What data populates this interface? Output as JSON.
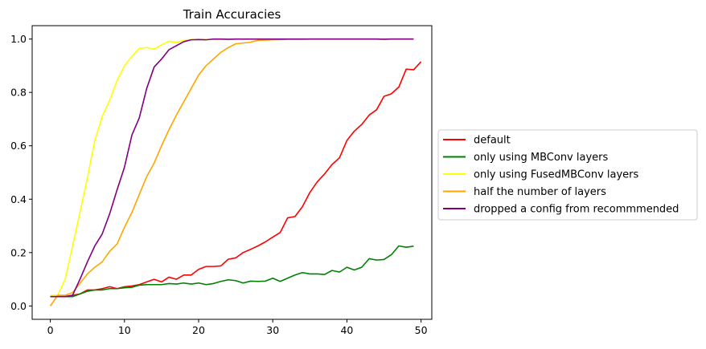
{
  "chart_data": {
    "type": "line",
    "title": "Train Accuracies",
    "xlabel": "",
    "ylabel": "",
    "xlim": [
      -2.45,
      51.45
    ],
    "ylim": [
      -0.05,
      1.05
    ],
    "xticks": [
      0,
      10,
      20,
      30,
      40,
      50
    ],
    "yticks": [
      0.0,
      0.2,
      0.4,
      0.6,
      0.8,
      1.0
    ],
    "xtick_labels": [
      "0",
      "10",
      "20",
      "30",
      "40",
      "50"
    ],
    "ytick_labels": [
      "0.0",
      "0.2",
      "0.4",
      "0.6",
      "0.8",
      "1.0"
    ],
    "grid": false,
    "legend_position": "center-right outside",
    "series": [
      {
        "name": "default",
        "color": "#ff0000",
        "y": [
          0.035,
          0.035,
          0.035,
          0.04,
          0.045,
          0.06,
          0.06,
          0.065,
          0.072,
          0.065,
          0.072,
          0.075,
          0.08,
          0.09,
          0.1,
          0.09,
          0.108,
          0.1,
          0.116,
          0.116,
          0.137,
          0.148,
          0.148,
          0.15,
          0.175,
          0.18,
          0.2,
          0.212,
          0.225,
          0.24,
          0.258,
          0.275,
          0.33,
          0.335,
          0.372,
          0.425,
          0.465,
          0.495,
          0.53,
          0.555,
          0.62,
          0.655,
          0.68,
          0.715,
          0.735,
          0.785,
          0.795,
          0.82,
          0.887,
          0.885,
          0.915
        ]
      },
      {
        "name": "only using MBConv layers",
        "color": "#008000",
        "y": [
          0.035,
          0.035,
          0.035,
          0.035,
          0.045,
          0.055,
          0.06,
          0.06,
          0.065,
          0.065,
          0.068,
          0.07,
          0.078,
          0.08,
          0.08,
          0.08,
          0.084,
          0.082,
          0.086,
          0.082,
          0.086,
          0.08,
          0.084,
          0.092,
          0.098,
          0.095,
          0.086,
          0.093,
          0.092,
          0.093,
          0.104,
          0.092,
          0.104,
          0.116,
          0.125,
          0.12,
          0.12,
          0.118,
          0.133,
          0.127,
          0.145,
          0.135,
          0.145,
          0.177,
          0.172,
          0.174,
          0.192,
          0.225,
          0.22,
          0.224
        ]
      },
      {
        "name": "only using FusedMBConv layers",
        "color": "#ffff00",
        "y": [
          0.04,
          0.04,
          0.1,
          0.225,
          0.35,
          0.48,
          0.62,
          0.71,
          0.77,
          0.845,
          0.9,
          0.935,
          0.965,
          0.968,
          0.962,
          0.978,
          0.992,
          0.987,
          0.995,
          0.998,
          0.998,
          0.998,
          0.998,
          0.998,
          0.999,
          0.999,
          0.999,
          0.999,
          0.999,
          1.0,
          1.0,
          1.0,
          1.0,
          1.0,
          1.0,
          1.0,
          1.0,
          1.0,
          1.0,
          1.0,
          1.0,
          1.0,
          1.0,
          1.0,
          1.0,
          1.0,
          1.0,
          1.0,
          1.0,
          1.0
        ]
      },
      {
        "name": "half the number of layers",
        "color": "#ffa500",
        "y": [
          0.0,
          0.04,
          0.04,
          0.05,
          0.085,
          0.12,
          0.145,
          0.165,
          0.205,
          0.232,
          0.295,
          0.35,
          0.418,
          0.485,
          0.535,
          0.6,
          0.66,
          0.715,
          0.765,
          0.815,
          0.865,
          0.9,
          0.925,
          0.95,
          0.968,
          0.982,
          0.985,
          0.988,
          0.995,
          0.996,
          0.997,
          0.998,
          0.999,
          0.999,
          0.999,
          1.0,
          1.0,
          1.0,
          1.0,
          1.0,
          1.0,
          1.0,
          1.0,
          1.0,
          1.0,
          1.0,
          1.0,
          1.0,
          1.0,
          1.0
        ]
      },
      {
        "name": "dropped a config from recommmended",
        "color": "#800080",
        "y": [
          0.035,
          0.035,
          0.035,
          0.04,
          0.1,
          0.165,
          0.225,
          0.27,
          0.345,
          0.435,
          0.52,
          0.64,
          0.705,
          0.815,
          0.895,
          0.925,
          0.96,
          0.975,
          0.99,
          0.997,
          0.998,
          0.997,
          1.0,
          1.0,
          0.999,
          1.0,
          1.0,
          1.0,
          1.0,
          1.0,
          1.0,
          1.0,
          1.0,
          1.0,
          1.0,
          1.0,
          1.0,
          1.0,
          1.0,
          1.0,
          1.0,
          1.0,
          1.0,
          1.0,
          1.0,
          0.999,
          1.0,
          1.0,
          1.0,
          1.0
        ]
      }
    ]
  }
}
